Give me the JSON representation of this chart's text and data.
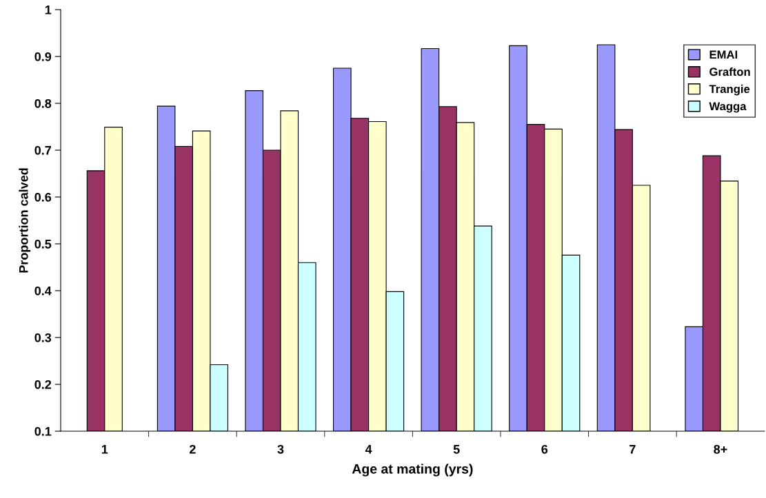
{
  "chart_data": {
    "type": "bar",
    "xlabel": "Age at mating (yrs)",
    "ylabel": "Proportion calved",
    "categories": [
      "1",
      "2",
      "3",
      "4",
      "5",
      "6",
      "7",
      "8+"
    ],
    "series": [
      {
        "name": "EMAI",
        "color": "#9999ff",
        "values": [
          null,
          0.794,
          0.827,
          0.875,
          0.917,
          0.923,
          0.925,
          0.323
        ]
      },
      {
        "name": "Grafton",
        "color": "#993366",
        "values": [
          0.656,
          0.708,
          0.7,
          0.768,
          0.793,
          0.755,
          0.744,
          0.688
        ]
      },
      {
        "name": "Trangie",
        "color": "#ffffcc",
        "values": [
          0.749,
          0.741,
          0.784,
          0.761,
          0.759,
          0.745,
          0.625,
          0.634
        ]
      },
      {
        "name": "Wagga",
        "color": "#ccffff",
        "values": [
          null,
          0.242,
          0.46,
          0.398,
          0.538,
          0.476,
          null,
          null
        ]
      }
    ],
    "ylim": [
      0.1,
      1
    ],
    "yticks": [
      0.1,
      0.2,
      0.3,
      0.4,
      0.5,
      0.6,
      0.7,
      0.8,
      0.9,
      1
    ],
    "grid": false,
    "legend": "top right"
  }
}
